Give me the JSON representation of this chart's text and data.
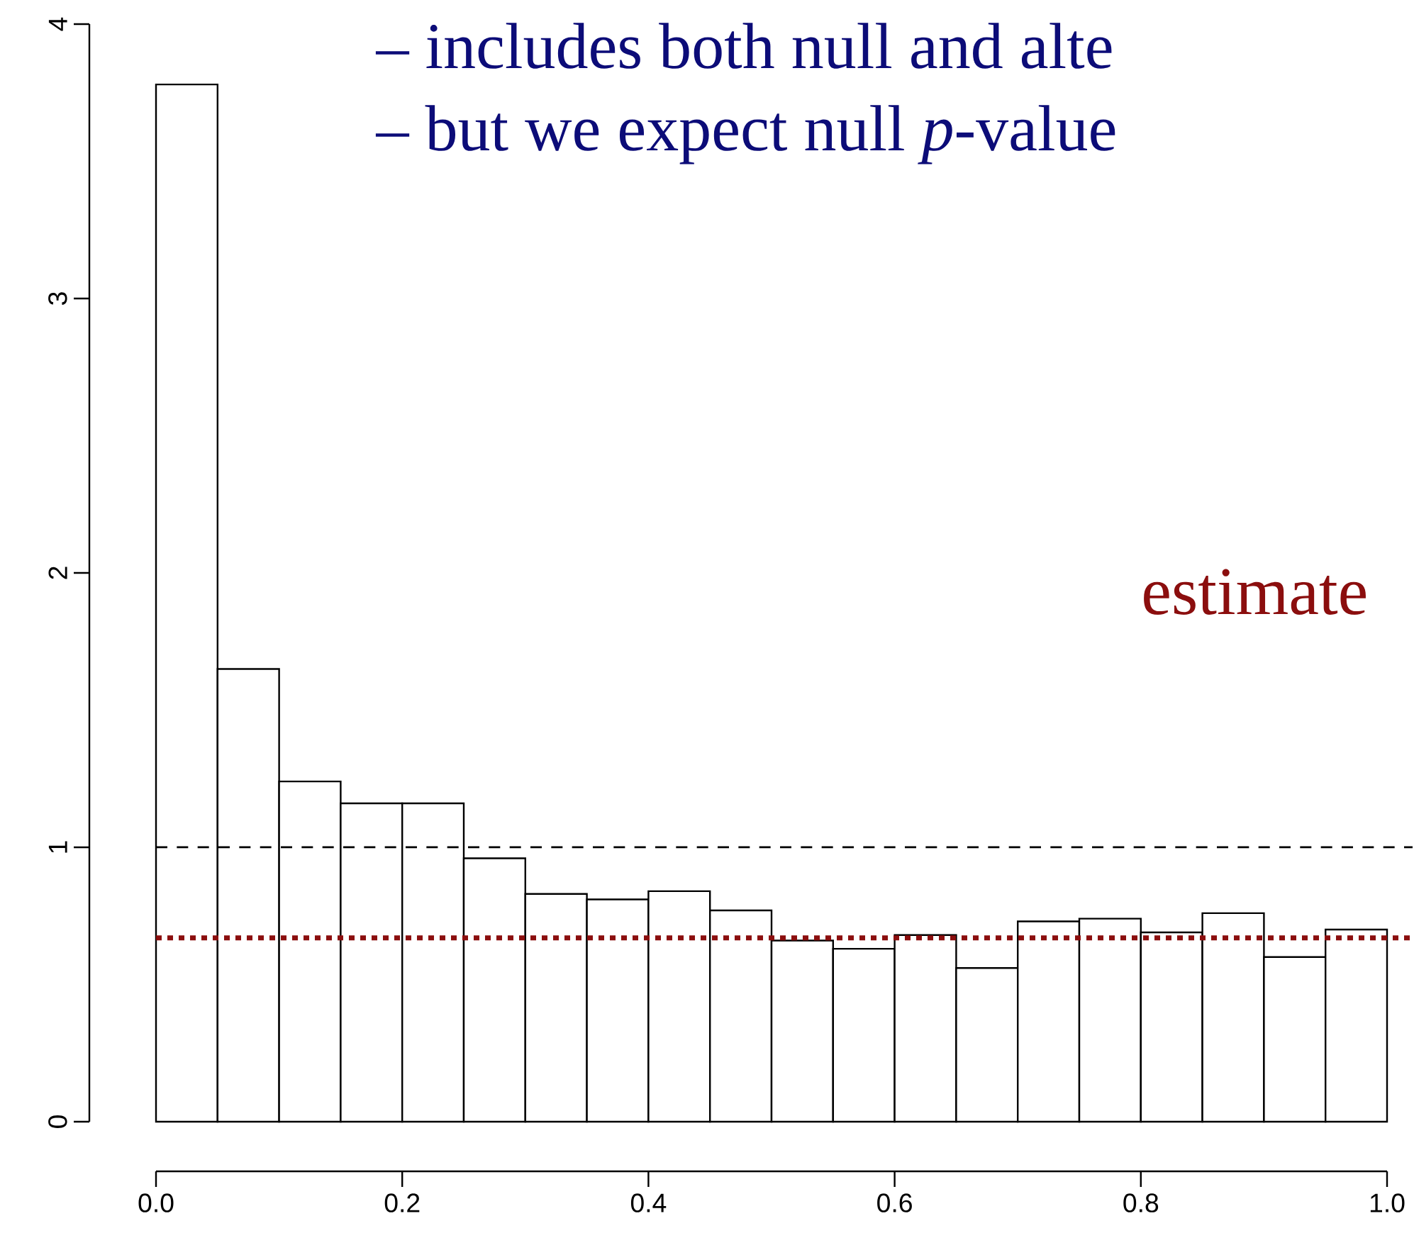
{
  "chart_data": {
    "type": "histogram",
    "bins": [
      0,
      0.05,
      0.1,
      0.15,
      0.2,
      0.25,
      0.3,
      0.35,
      0.4,
      0.45,
      0.5,
      0.55,
      0.6,
      0.65,
      0.7,
      0.75,
      0.8,
      0.85,
      0.9,
      0.95,
      1.0
    ],
    "values": [
      3.78,
      1.65,
      1.24,
      1.16,
      1.16,
      0.96,
      0.83,
      0.81,
      0.84,
      0.77,
      0.66,
      0.63,
      0.68,
      0.56,
      0.73,
      0.74,
      0.69,
      0.76,
      0.6,
      0.7
    ],
    "color": "#ffffff",
    "xlim": [
      0,
      1
    ],
    "xticks": [
      {
        "value": 0,
        "label": "0.0"
      },
      {
        "value": 0.2,
        "label": "0.2"
      },
      {
        "value": 0.4,
        "label": "0.4"
      },
      {
        "value": 0.6,
        "label": "0.6"
      },
      {
        "value": 0.8,
        "label": "0.8"
      },
      {
        "value": 1,
        "label": "1.0"
      }
    ],
    "ylim": [
      0,
      4
    ],
    "yticks": [
      0,
      1,
      2,
      3,
      4
    ],
    "ref_lines": [
      {
        "axis": "y",
        "value": 1,
        "color": "#000000",
        "line_style": "dashed"
      },
      {
        "axis": "y",
        "value": 0.67,
        "color": "#8b0e0e",
        "line_style": "dotted",
        "label": "estimate"
      }
    ],
    "annotations": [
      "– includes both null and alte",
      "– but we expect null *p*-value"
    ]
  }
}
